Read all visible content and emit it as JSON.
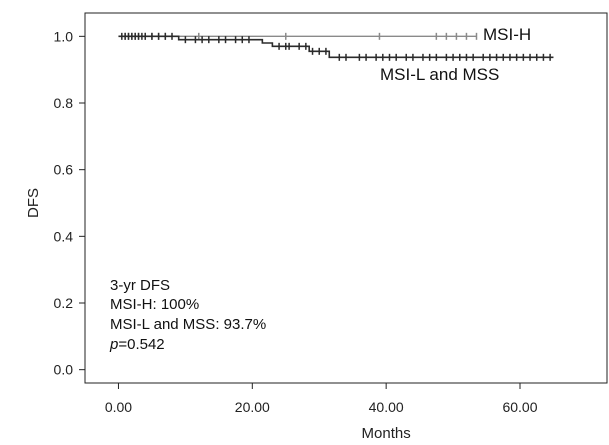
{
  "chart_data": {
    "type": "line",
    "title": "",
    "xlabel": "Months",
    "ylabel": "DFS",
    "xlim": [
      -5,
      73
    ],
    "ylim": [
      -0.04,
      1.07
    ],
    "x_ticks": [
      0,
      20,
      40,
      60
    ],
    "x_tick_labels": [
      "0.00",
      "20.00",
      "40.00",
      "60.00"
    ],
    "y_ticks": [
      0,
      0.2,
      0.4,
      0.6,
      0.8,
      1.0
    ],
    "y_tick_labels": [
      "0.0",
      "0.2",
      "0.4",
      "0.6",
      "0.8",
      "1.0"
    ],
    "grid": false,
    "series": [
      {
        "name": "MSI-H",
        "color": "#8a8a8a",
        "step_x": [
          0,
          53.5
        ],
        "step_y": [
          1.0,
          1.0
        ],
        "censor_x": [
          1,
          1.5,
          2,
          2.5,
          3,
          4,
          5,
          6,
          7,
          12,
          25,
          39,
          47.5,
          49,
          50.5,
          52,
          53.5
        ],
        "censor_y": [
          1.0,
          1.0,
          1.0,
          1.0,
          1.0,
          1.0,
          1.0,
          1.0,
          1.0,
          1.0,
          1.0,
          1.0,
          1.0,
          1.0,
          1.0,
          1.0,
          1.0
        ]
      },
      {
        "name": "MSI-L and MSS",
        "color": "#2b2b2b",
        "step_x": [
          0,
          9,
          21.5,
          23,
          28.5,
          31.5,
          65
        ],
        "step_y": [
          1.0,
          0.99,
          0.98,
          0.97,
          0.955,
          0.937,
          0.937
        ],
        "censor_x": [
          0.5,
          1,
          1.5,
          2,
          2.5,
          3,
          3.5,
          4,
          5,
          6,
          7,
          8,
          10,
          11.5,
          12.5,
          13.5,
          15,
          16,
          17.5,
          18.5,
          19.5,
          24,
          25,
          25.5,
          27,
          28,
          29,
          30,
          31,
          33,
          34,
          36,
          37,
          38.5,
          39.5,
          40.5,
          41.5,
          43,
          44,
          45.5,
          46.5,
          47.5,
          49,
          50,
          51,
          52,
          53,
          54.5,
          55.5,
          56.5,
          57.5,
          58.5,
          59.5,
          60.5,
          61.5,
          62.5,
          63.5,
          64.5
        ],
        "censor_y": [
          1.0,
          1.0,
          1.0,
          1.0,
          1.0,
          1.0,
          1.0,
          1.0,
          1.0,
          1.0,
          1.0,
          1.0,
          0.99,
          0.99,
          0.99,
          0.99,
          0.99,
          0.99,
          0.99,
          0.99,
          0.99,
          0.97,
          0.97,
          0.97,
          0.97,
          0.97,
          0.955,
          0.955,
          0.955,
          0.937,
          0.937,
          0.937,
          0.937,
          0.937,
          0.937,
          0.937,
          0.937,
          0.937,
          0.937,
          0.937,
          0.937,
          0.937,
          0.937,
          0.937,
          0.937,
          0.937,
          0.937,
          0.937,
          0.937,
          0.937,
          0.937,
          0.937,
          0.937,
          0.937,
          0.937,
          0.937,
          0.937,
          0.937
        ]
      }
    ],
    "annotations": {
      "line1": "3-yr DFS",
      "line2": "MSI-H: 100%",
      "line3": "MSI-L and MSS: 93.7%",
      "p_prefix": "p",
      "p_rest": "=0.542"
    }
  }
}
